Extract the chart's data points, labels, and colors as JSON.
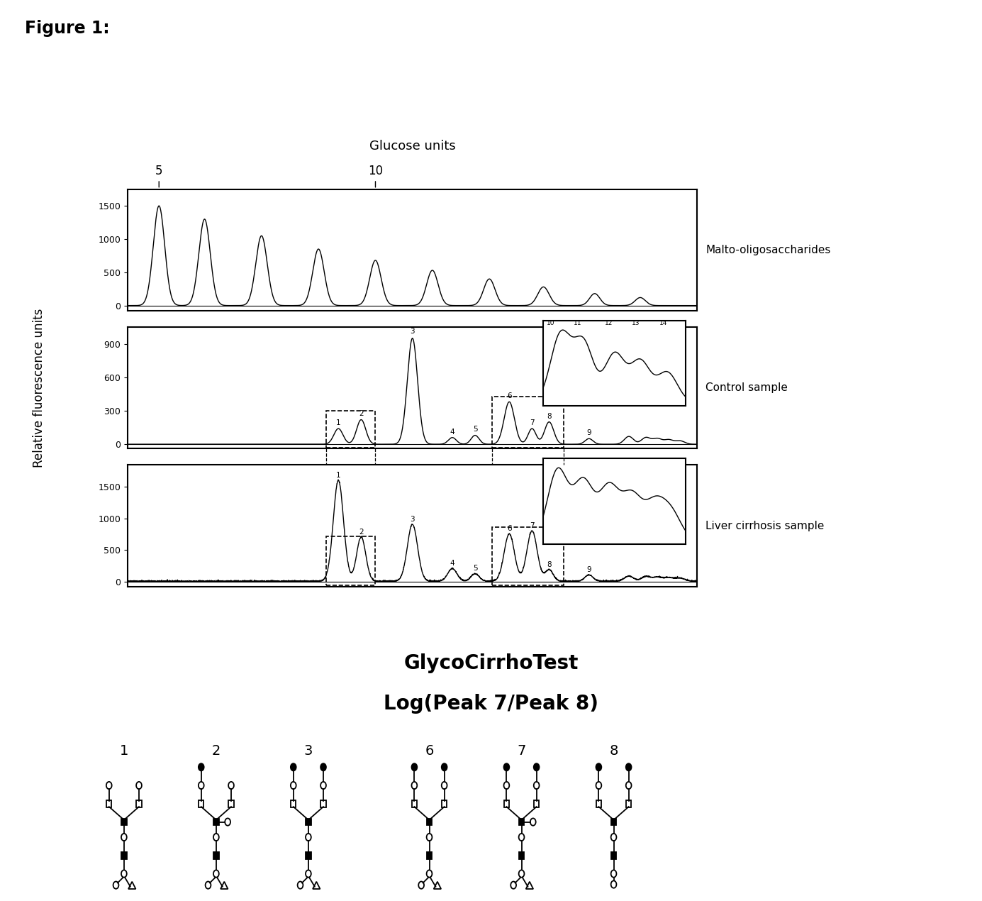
{
  "figure_title": "Figure 1:",
  "glucose_units_label": "Glucose units",
  "ylabel": "Relative fluorescence units",
  "panel1_label": "Malto-oligosaccharides",
  "panel2_label": "Control sample",
  "panel3_label": "Liver cirrhosis sample",
  "formula_line1": "GlycoCirrhoTest",
  "formula_line2": "Log(Peak 7/Peak 8)",
  "glycan_numbers": [
    "1",
    "2",
    "3",
    "6",
    "7",
    "8"
  ],
  "background": "#ffffff",
  "panel1_yticks": [
    0,
    500,
    1000,
    1500
  ],
  "panel2_yticks": [
    0,
    300,
    600,
    900
  ],
  "panel3_yticks": [
    0,
    500,
    1000,
    1500
  ]
}
